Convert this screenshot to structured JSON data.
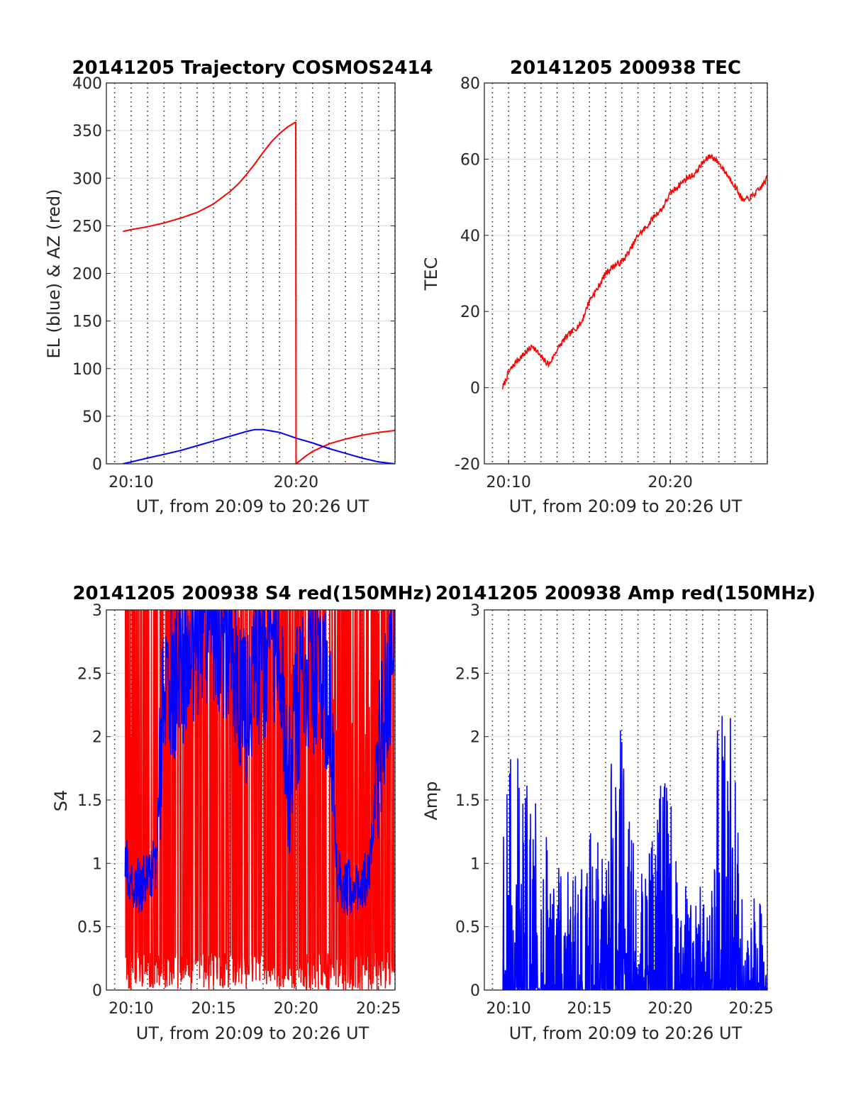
{
  "chart_data": [
    {
      "type": "line",
      "title": "20141205 Trajectory COSMOS2414",
      "xlabel": "UT, from 20:09 to 20:26 UT",
      "ylabel": "EL (blue) & AZ (red)",
      "xlim": [
        "20:08:30",
        "20:26:00"
      ],
      "ylim": [
        0,
        400
      ],
      "xticks": [
        "20:10",
        "20:20"
      ],
      "yticks": [
        0,
        50,
        100,
        150,
        200,
        250,
        300,
        350,
        400
      ],
      "grid": true,
      "colors": {
        "el": "#0000ff",
        "az": "#ff0000"
      },
      "series": [
        {
          "x": [
            "20:09:30",
            "20:10:00",
            "20:11:00",
            "20:12:00",
            "20:13:00",
            "20:14:00",
            "20:15:00",
            "20:16:00",
            "20:16:30",
            "20:17:00",
            "20:17:30",
            "20:18:00",
            "20:18:30",
            "20:19:00",
            "20:19:30",
            "20:19:59"
          ],
          "values": [
            244,
            246,
            249,
            253,
            258,
            264,
            273,
            286,
            294,
            304,
            315,
            327,
            338,
            347,
            354,
            359
          ]
        },
        {
          "x": [
            "20:20:00",
            "20:20:30",
            "20:21:00",
            "20:22:00",
            "20:23:00",
            "20:24:00",
            "20:25:00",
            "20:26:00"
          ],
          "values": [
            0,
            7,
            13,
            21,
            26,
            30,
            33,
            35
          ]
        },
        {
          "x": [
            "20:09:30",
            "20:10:00",
            "20:11:00",
            "20:12:00",
            "20:13:00",
            "20:14:00",
            "20:15:00",
            "20:16:00",
            "20:17:00",
            "20:17:30",
            "20:18:00",
            "20:19:00",
            "20:20:00",
            "20:21:00",
            "20:22:00",
            "20:23:00",
            "20:24:00",
            "20:25:00",
            "20:26:00"
          ],
          "values": [
            0,
            2,
            6,
            10,
            14,
            19,
            24,
            29,
            34,
            36,
            36,
            33,
            27,
            22,
            16,
            11,
            6,
            2,
            0
          ]
        }
      ]
    },
    {
      "type": "line",
      "title": "20141205 200938 TEC",
      "xlabel": "UT, from 20:09 to 20:26 UT",
      "ylabel": "TEC",
      "xlim": [
        "20:08:30",
        "20:26:00"
      ],
      "ylim": [
        -20,
        80
      ],
      "xticks": [
        "20:10",
        "20:20"
      ],
      "yticks": [
        -20,
        0,
        20,
        40,
        60,
        80
      ],
      "grid": true,
      "color": "#ff0000",
      "series": [
        {
          "x": [
            "20:09:38",
            "20:10:00",
            "20:10:30",
            "20:11:00",
            "20:11:30",
            "20:12:00",
            "20:12:30",
            "20:13:00",
            "20:13:30",
            "20:14:00",
            "20:14:30",
            "20:15:00",
            "20:15:30",
            "20:16:00",
            "20:16:30",
            "20:17:00",
            "20:17:30",
            "20:18:00",
            "20:18:30",
            "20:19:00",
            "20:19:30",
            "20:20:00",
            "20:20:30",
            "20:21:00",
            "20:21:30",
            "20:22:00",
            "20:22:30",
            "20:23:00",
            "20:23:30",
            "20:24:00",
            "20:24:30",
            "20:25:00",
            "20:25:30",
            "20:26:00"
          ],
          "values": [
            0,
            4,
            7,
            9,
            11,
            8,
            6,
            10,
            13,
            15,
            17,
            23,
            26,
            30,
            32,
            33,
            36,
            40,
            42,
            45,
            47,
            51,
            53,
            55,
            56,
            59,
            61,
            59,
            56,
            53,
            49,
            50,
            52,
            55
          ]
        }
      ]
    },
    {
      "type": "line",
      "title": "20141205 200938 S4 red(150MHz)",
      "xlabel": "UT, from 20:09 to 20:26 UT",
      "ylabel": "S4",
      "xlim": [
        "20:08:30",
        "20:26:00"
      ],
      "ylim": [
        0,
        3
      ],
      "xticks": [
        "20:10",
        "20:15",
        "20:20",
        "20:25"
      ],
      "yticks": [
        0,
        0.5,
        1,
        1.5,
        2,
        2.5,
        3
      ],
      "grid": true,
      "colors": {
        "red": "#ff0000",
        "blue": "#0000ff"
      },
      "series": [
        {
          "x": [
            "20:09:38",
            "20:10:00",
            "20:10:30",
            "20:11:00",
            "20:11:30",
            "20:12:00",
            "20:13:00",
            "20:14:00",
            "20:15:00",
            "20:16:00",
            "20:17:00",
            "20:18:00",
            "20:19:00",
            "20:19:30",
            "20:20:00",
            "20:21:00",
            "20:22:00",
            "20:22:30",
            "20:23:00",
            "20:23:30",
            "20:24:00",
            "20:24:30",
            "20:25:00",
            "20:25:30",
            "20:26:00"
          ],
          "values": [
            1.0,
            0.9,
            0.8,
            0.9,
            1.0,
            2.4,
            2.5,
            2.8,
            2.9,
            2.7,
            2.2,
            2.6,
            2.8,
            1.6,
            2.2,
            2.5,
            2.3,
            0.9,
            0.8,
            0.85,
            0.8,
            1.0,
            1.8,
            2.3,
            2.6
          ]
        }
      ]
    },
    {
      "type": "line",
      "title": "20141205 200938 Amp red(150MHz)",
      "xlabel": "UT, from 20:09 to 20:26 UT",
      "ylabel": "Amp",
      "xlim": [
        "20:08:30",
        "20:26:00"
      ],
      "ylim": [
        0,
        3
      ],
      "xticks": [
        "20:10",
        "20:15",
        "20:20",
        "20:25"
      ],
      "yticks": [
        0,
        0.5,
        1,
        1.5,
        2,
        2.5,
        3
      ],
      "grid": true,
      "color": "#0000ff",
      "series": [
        {
          "x": [
            "20:09:38",
            "20:10:00",
            "20:10:30",
            "20:11:00",
            "20:11:30",
            "20:12:00",
            "20:13:00",
            "20:14:00",
            "20:15:00",
            "20:16:00",
            "20:16:45",
            "20:17:30",
            "20:18:00",
            "20:19:00",
            "20:19:45",
            "20:20:30",
            "20:21:30",
            "20:22:30",
            "20:23:00",
            "20:23:30",
            "20:24:00",
            "20:24:30",
            "20:25:00",
            "20:26:00"
          ],
          "values": [
            1.7,
            1.95,
            1.8,
            2.1,
            1.6,
            1.3,
            1.1,
            1.0,
            1.3,
            1.4,
            2.3,
            1.3,
            1.0,
            1.5,
            1.85,
            0.9,
            0.9,
            1.0,
            2.35,
            2.35,
            2.1,
            1.0,
            0.8,
            0.6
          ]
        }
      ]
    }
  ]
}
